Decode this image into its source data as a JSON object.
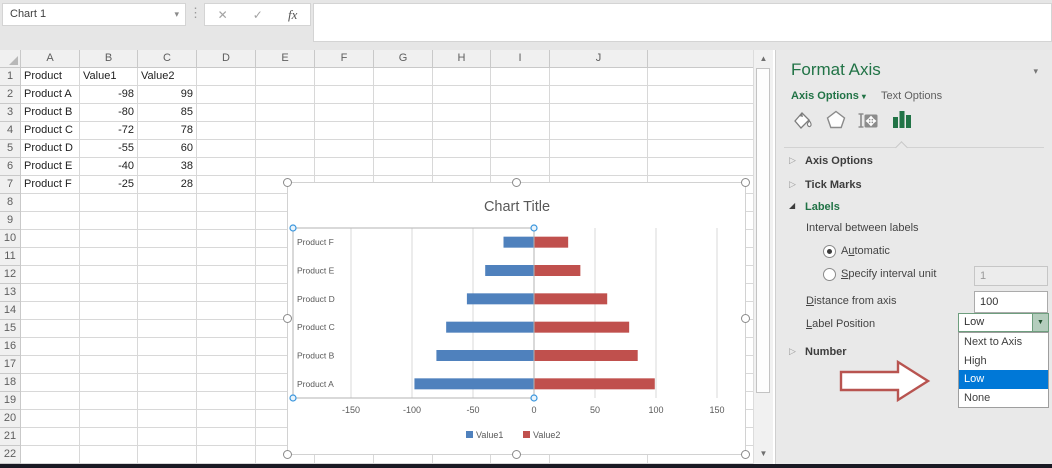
{
  "colors": {
    "pane_green": "#217346",
    "highlight_blue": "#0078d7",
    "series1_blue": "#4f81bd",
    "series2_red": "#c0504d",
    "arrow_red": "#b85450"
  },
  "titlebar": {
    "name_box_value": "Chart 1",
    "name_box_arrow": "▾",
    "grip_dots": "⋮",
    "cancel_icon": "✕",
    "confirm_icon": "✓",
    "fx_icon": "fx",
    "formula_value": ""
  },
  "sheet": {
    "columns": [
      {
        "label": "A",
        "width": 59
      },
      {
        "label": "B",
        "width": 58
      },
      {
        "label": "C",
        "width": 59
      },
      {
        "label": "D",
        "width": 59
      },
      {
        "label": "E",
        "width": 59
      },
      {
        "label": "F",
        "width": 59
      },
      {
        "label": "G",
        "width": 59
      },
      {
        "label": "H",
        "width": 58
      },
      {
        "label": "I",
        "width": 59
      },
      {
        "label": "I2_wide",
        "width": 98
      },
      {
        "label": "J",
        "width": 157
      }
    ],
    "visible_columns": [
      "A",
      "B",
      "C",
      "D",
      "E",
      "F",
      "G",
      "H",
      "I",
      "J"
    ],
    "row_count": 22,
    "table": {
      "headers": [
        "Product",
        "Value1",
        "Value2"
      ],
      "rows": [
        [
          "Product A",
          "-98",
          "99"
        ],
        [
          "Product B",
          "-80",
          "85"
        ],
        [
          "Product C",
          "-72",
          "78"
        ],
        [
          "Product D",
          "-55",
          "60"
        ],
        [
          "Product E",
          "-40",
          "38"
        ],
        [
          "Product F",
          "-25",
          "28"
        ]
      ]
    }
  },
  "scrollbar": {
    "up_arrow": "▲",
    "down_arrow": "▼"
  },
  "chart_data": {
    "type": "bar",
    "orientation": "horizontal",
    "title": "Chart Title",
    "categories": [
      "Product A",
      "Product B",
      "Product C",
      "Product D",
      "Product E",
      "Product F"
    ],
    "series": [
      {
        "name": "Value1",
        "color": "#4f81bd",
        "values": [
          -98,
          -80,
          -72,
          -55,
          -40,
          -25
        ]
      },
      {
        "name": "Value2",
        "color": "#c0504d",
        "values": [
          99,
          85,
          78,
          60,
          38,
          28
        ]
      }
    ],
    "x_ticks": [
      -150,
      -100,
      -50,
      0,
      50,
      100,
      150
    ],
    "xlim": [
      -197,
      159
    ],
    "gridlines": "vertical",
    "legend_position": "bottom",
    "category_axis_label_position": "Low",
    "category_axis_selected": true
  },
  "format_pane": {
    "title": "Format Axis",
    "collapse_chevron": "▾",
    "tabs": [
      {
        "label": "Axis Options",
        "arrow": "▾",
        "active": true
      },
      {
        "label": "Text Options",
        "active": false
      }
    ],
    "icon_tabs": [
      "fill-line-icon",
      "effects-icon",
      "size-properties-icon",
      "chart-options-icon"
    ],
    "icons": {
      "collapsed": "▷",
      "expanded": "◢",
      "dropdown_arrow": "▼"
    },
    "sections": [
      {
        "label": "Axis Options",
        "state": "collapsed"
      },
      {
        "label": "Tick Marks",
        "state": "collapsed"
      },
      {
        "label": "Labels",
        "state": "expanded"
      },
      {
        "label": "Number",
        "state": "collapsed"
      }
    ],
    "labels_section": {
      "interval_label": "Interval between labels",
      "automatic": {
        "pre": "A",
        "key": "u",
        "post": "tomatic",
        "selected": true
      },
      "specify": {
        "pre": "",
        "key": "S",
        "post": "pecify interval unit",
        "selected": false,
        "value": "1"
      },
      "distance": {
        "pre": "",
        "key": "D",
        "post": "istance from axis",
        "value": "100"
      },
      "label_position": {
        "pre": "",
        "key": "L",
        "post": "abel Position",
        "value": "Low",
        "options": [
          "Next to Axis",
          "High",
          "Low",
          "None"
        ],
        "selected": "Low",
        "dropdown_open": true
      }
    }
  }
}
